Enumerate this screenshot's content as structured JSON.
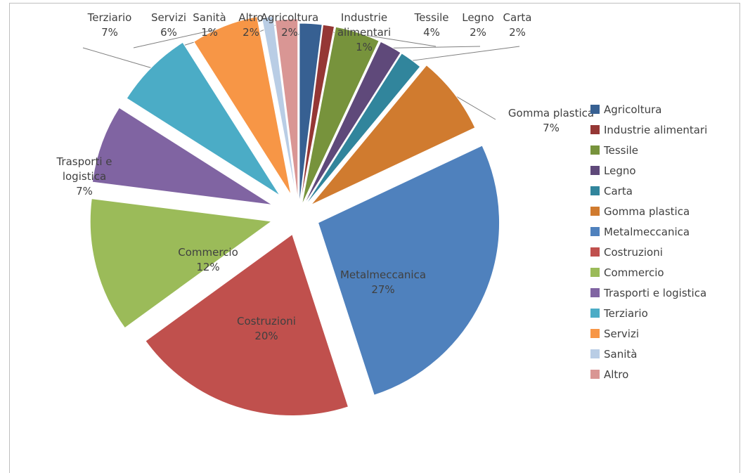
{
  "chart_data": {
    "type": "pie",
    "title": "",
    "legend_position": "right",
    "slices": [
      {
        "label": "Agricoltura",
        "value": 2,
        "display": "2%",
        "color": "#376092"
      },
      {
        "label": "Industrie alimentari",
        "value": 1,
        "display": "1%",
        "color": "#953735"
      },
      {
        "label": "Tessile",
        "value": 4,
        "display": "4%",
        "color": "#77933c"
      },
      {
        "label": "Legno",
        "value": 2,
        "display": "2%",
        "color": "#5f497a"
      },
      {
        "label": "Carta",
        "value": 2,
        "display": "2%",
        "color": "#31859c"
      },
      {
        "label": "Gomma plastica",
        "value": 7,
        "display": "7%",
        "color": "#d07b2f"
      },
      {
        "label": "Metalmeccanica",
        "value": 27,
        "display": "27%",
        "color": "#4f81bd"
      },
      {
        "label": "Costruzioni",
        "value": 20,
        "display": "20%",
        "color": "#c0504d"
      },
      {
        "label": "Commercio",
        "value": 12,
        "display": "12%",
        "color": "#9bbb59"
      },
      {
        "label": "Trasporti e logistica",
        "value": 7,
        "display": "7%",
        "color": "#8064a2"
      },
      {
        "label": "Terziario",
        "value": 7,
        "display": "7%",
        "color": "#4bacc6"
      },
      {
        "label": "Servizi",
        "value": 6,
        "display": "6%",
        "color": "#f79646"
      },
      {
        "label": "Sanità",
        "value": 1,
        "display": "1%",
        "color": "#b9cde5"
      },
      {
        "label": "Altro",
        "value": 2,
        "display": "2%",
        "color": "#d99694"
      }
    ]
  }
}
